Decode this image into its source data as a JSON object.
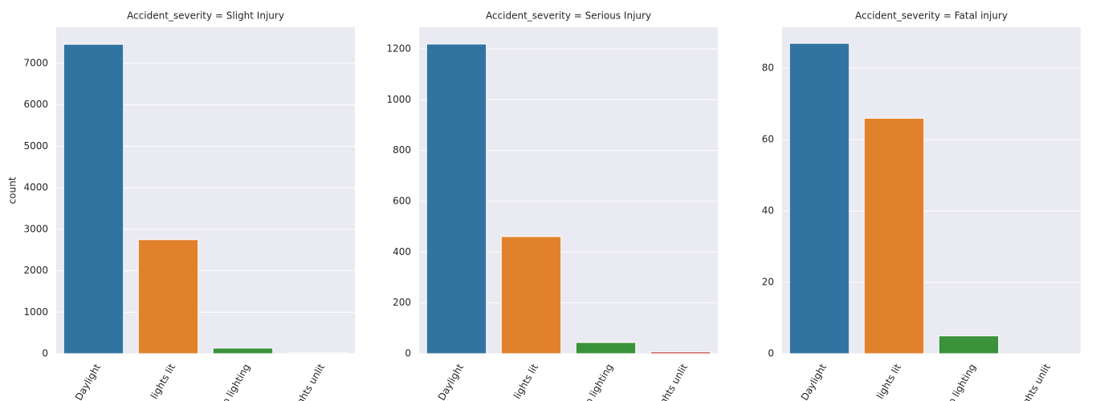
{
  "chart_data": [
    {
      "type": "bar",
      "title": "Accident_severity = Slight Injury",
      "ylabel": "count",
      "categories": [
        "Daylight",
        "lights lit",
        "o lighting",
        "ghts unlit"
      ],
      "values": [
        7460,
        2750,
        135,
        20
      ],
      "colors": [
        "#3274a1",
        "#e1812c",
        "#3a923a",
        "#c03d3e"
      ],
      "ylim": [
        0,
        7870
      ],
      "yticks": [
        0,
        1000,
        2000,
        3000,
        4000,
        5000,
        6000,
        7000
      ],
      "grid": true
    },
    {
      "type": "bar",
      "title": "Accident_severity = Serious Injury",
      "categories": [
        "Daylight",
        "lights lit",
        "o lighting",
        "ghts unlit"
      ],
      "values": [
        1219,
        461,
        44,
        7
      ],
      "colors": [
        "#3274a1",
        "#e1812c",
        "#3a923a",
        "#c03d3e"
      ],
      "ylim": [
        0,
        1285
      ],
      "yticks": [
        0,
        200,
        400,
        600,
        800,
        1000,
        1200
      ],
      "grid": true
    },
    {
      "type": "bar",
      "title": "Accident_severity = Fatal injury",
      "categories": [
        "Daylight",
        "lights lit",
        "o lighting",
        "ghts unlit"
      ],
      "values": [
        87,
        66,
        5,
        0
      ],
      "colors": [
        "#3274a1",
        "#e1812c",
        "#3a923a",
        "#c03d3e"
      ],
      "ylim": [
        0,
        91.5
      ],
      "yticks": [
        0,
        20,
        40,
        60,
        80
      ],
      "grid": true
    }
  ]
}
